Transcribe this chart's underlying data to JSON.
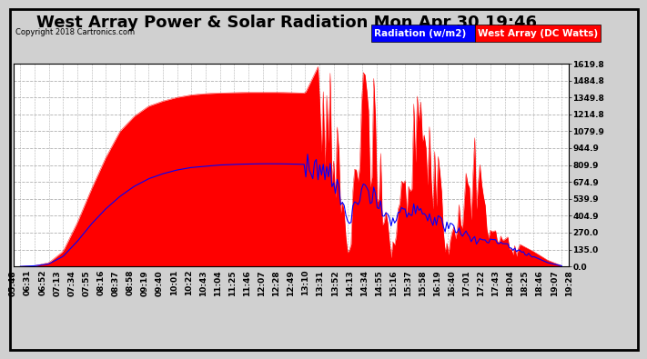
{
  "title": "West Array Power & Solar Radiation Mon Apr 30 19:46",
  "copyright": "Copyright 2018 Cartronics.com",
  "legend_labels": [
    "Radiation (w/m2)",
    "West Array (DC Watts)"
  ],
  "y_ticks": [
    0.0,
    135.0,
    270.0,
    404.9,
    539.9,
    674.9,
    809.9,
    944.9,
    1079.9,
    1214.8,
    1349.8,
    1484.8,
    1619.8
  ],
  "ylim": [
    0,
    1619.8
  ],
  "bg_color": "#d0d0d0",
  "plot_bg_color": "#ffffff",
  "grid_color": "#b0b0b0",
  "x_labels": [
    "05:48",
    "06:31",
    "06:52",
    "07:13",
    "07:34",
    "07:55",
    "08:16",
    "08:37",
    "08:58",
    "09:19",
    "09:40",
    "10:01",
    "10:22",
    "10:43",
    "11:04",
    "11:25",
    "11:46",
    "12:07",
    "12:28",
    "12:49",
    "13:10",
    "13:31",
    "13:52",
    "14:13",
    "14:34",
    "14:55",
    "15:16",
    "15:37",
    "15:58",
    "16:19",
    "16:40",
    "17:01",
    "17:22",
    "17:43",
    "18:04",
    "18:25",
    "18:46",
    "19:07",
    "19:28"
  ],
  "red_data": [
    0,
    5,
    30,
    120,
    350,
    620,
    870,
    1080,
    1200,
    1280,
    1320,
    1350,
    1370,
    1380,
    1385,
    1388,
    1390,
    1390,
    1390,
    1388,
    1385,
    1620,
    1250,
    100,
    1390,
    1330,
    100,
    800,
    1290,
    1080,
    100,
    550,
    900,
    270,
    220,
    180,
    120,
    50,
    5
  ],
  "blue_data": [
    0,
    5,
    20,
    80,
    200,
    340,
    460,
    560,
    640,
    700,
    740,
    770,
    790,
    800,
    810,
    815,
    818,
    820,
    820,
    818,
    815,
    810,
    700,
    350,
    590,
    560,
    350,
    450,
    430,
    380,
    310,
    270,
    200,
    200,
    170,
    130,
    80,
    30,
    5
  ],
  "title_fontsize": 13,
  "tick_fontsize": 6.5,
  "legend_fontsize": 7.5
}
